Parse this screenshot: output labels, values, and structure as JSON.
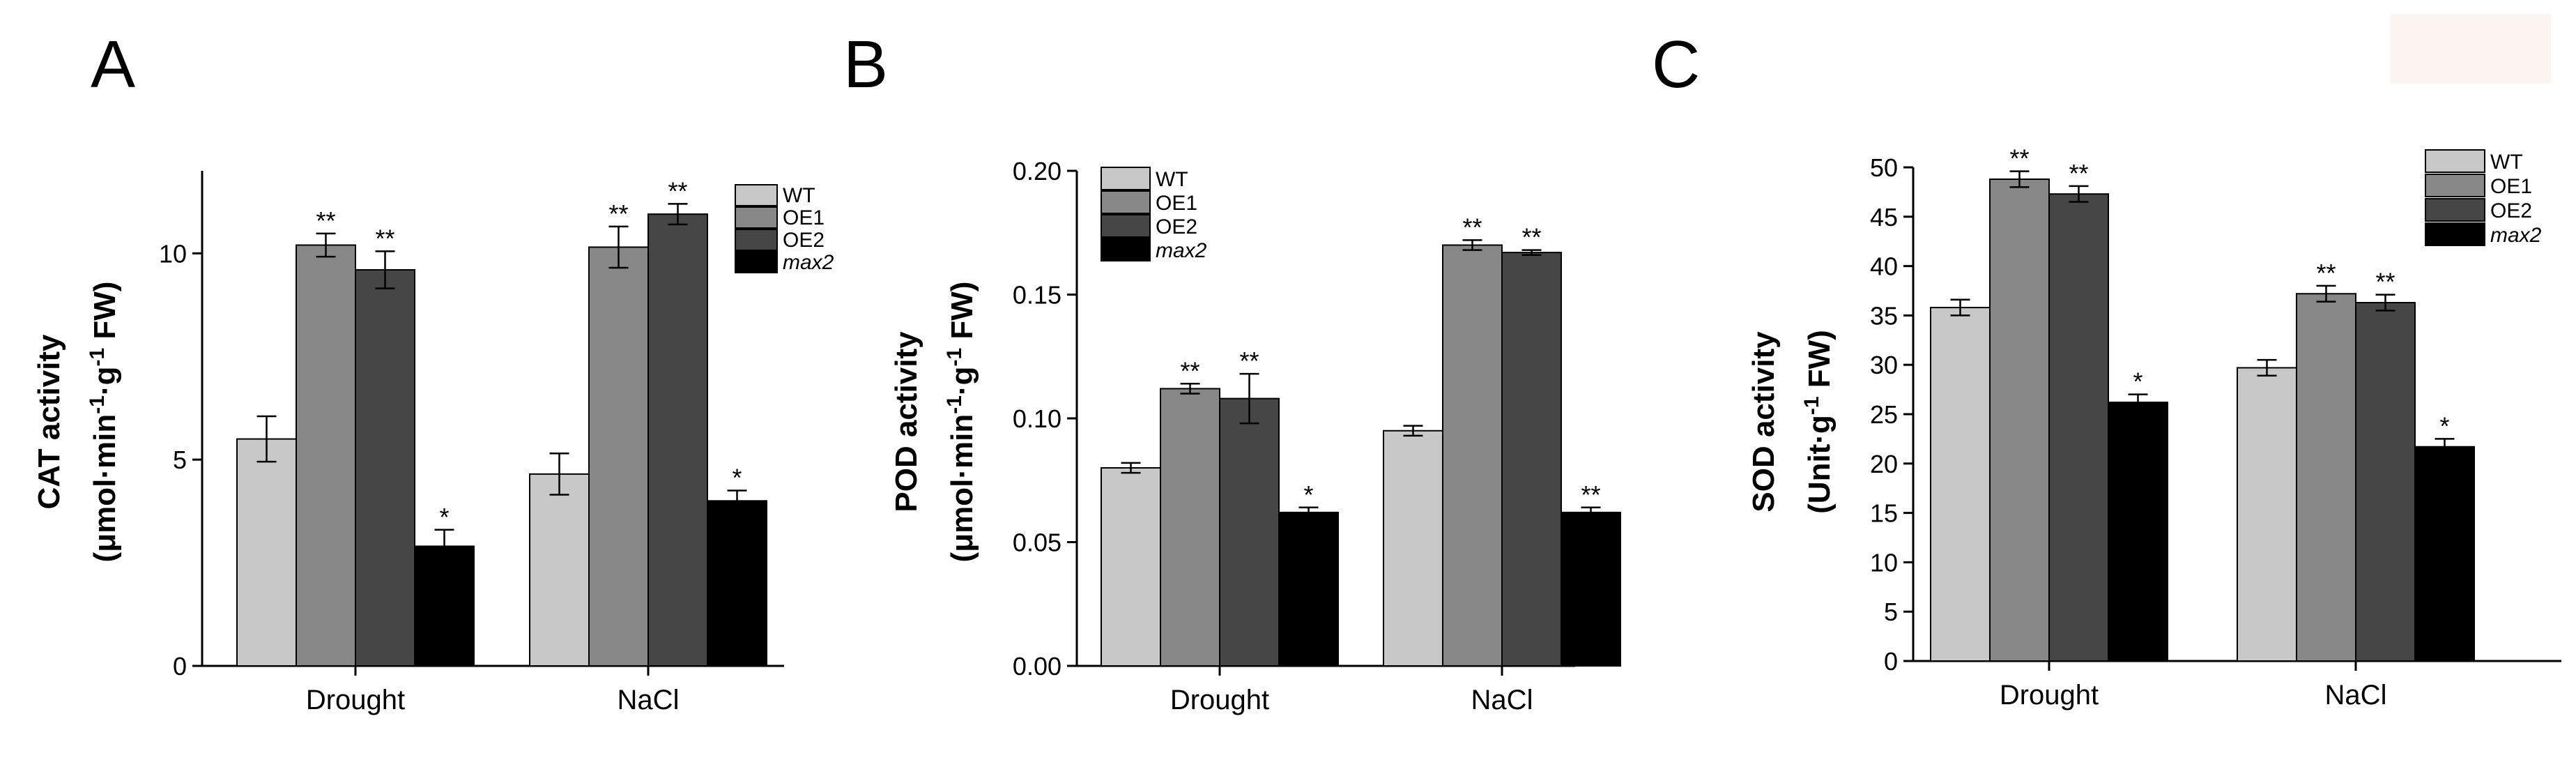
{
  "colors": {
    "WT": "#c8c8c8",
    "OE1": "#888888",
    "OE2": "#464646",
    "max2": "#000000",
    "bar_stroke": "#000000",
    "corner_mark": "#fbf4f0"
  },
  "chart_data": [
    {
      "panel": "A",
      "type": "bar",
      "ylabel_line1": "CAT activity",
      "ylabel_line2": {
        "pre": "(μmol·min",
        "sup1": "-1",
        "mid": "·g",
        "sup2": "-1",
        "post": " FW)"
      },
      "ylim": [
        0,
        12
      ],
      "yticks": [
        0,
        5,
        10
      ],
      "ytick_labels": [
        "0",
        "5",
        "10"
      ],
      "categories": [
        "Drought",
        "NaCl"
      ],
      "legend": [
        "WT",
        "OE1",
        "OE2",
        "max2"
      ],
      "series": [
        {
          "name": "WT",
          "values": [
            5.5,
            4.65
          ],
          "errors": [
            0.55,
            0.5
          ],
          "sig": [
            "",
            ""
          ]
        },
        {
          "name": "OE1",
          "values": [
            10.2,
            10.15
          ],
          "errors": [
            0.28,
            0.5
          ],
          "sig": [
            "**",
            "**"
          ]
        },
        {
          "name": "OE2",
          "values": [
            9.6,
            10.95
          ],
          "errors": [
            0.45,
            0.25
          ],
          "sig": [
            "**",
            "**"
          ]
        },
        {
          "name": "max2",
          "values": [
            2.9,
            4.0
          ],
          "errors": [
            0.4,
            0.25
          ],
          "sig": [
            "*",
            "*"
          ]
        }
      ]
    },
    {
      "panel": "B",
      "type": "bar",
      "ylabel_line1": "POD activity",
      "ylabel_line2": {
        "pre": "(μmol·min",
        "sup1": "-1",
        "mid": "·g",
        "sup2": "-1",
        "post": " FW)"
      },
      "ylim": [
        0,
        0.2
      ],
      "yticks": [
        0,
        0.05,
        0.1,
        0.15,
        0.2
      ],
      "ytick_labels": [
        "0.00",
        "0.05",
        "0.10",
        "0.15",
        "0.20"
      ],
      "categories": [
        "Drought",
        "NaCl"
      ],
      "legend": [
        "WT",
        "OE1",
        "OE2",
        "max2"
      ],
      "series": [
        {
          "name": "WT",
          "values": [
            0.08,
            0.095
          ],
          "errors": [
            0.002,
            0.002
          ],
          "sig": [
            "",
            ""
          ]
        },
        {
          "name": "OE1",
          "values": [
            0.112,
            0.17
          ],
          "errors": [
            0.002,
            0.002
          ],
          "sig": [
            "**",
            "**"
          ]
        },
        {
          "name": "OE2",
          "values": [
            0.108,
            0.167
          ],
          "errors": [
            0.01,
            0.001
          ],
          "sig": [
            "**",
            "**"
          ]
        },
        {
          "name": "max2",
          "values": [
            0.062,
            0.062
          ],
          "errors": [
            0.002,
            0.002
          ],
          "sig": [
            "*",
            "**"
          ]
        }
      ]
    },
    {
      "panel": "C",
      "type": "bar",
      "ylabel_line1": "SOD activity",
      "ylabel_line2": {
        "pre": "(Unit·g",
        "sup1": "-1",
        "mid": "",
        "sup2": "",
        "post": " FW)"
      },
      "ylim": [
        0,
        50
      ],
      "yticks": [
        0,
        5,
        10,
        15,
        20,
        25,
        30,
        35,
        40,
        45,
        50
      ],
      "ytick_labels": [
        "0",
        "5",
        "10",
        "15",
        "20",
        "25",
        "30",
        "35",
        "40",
        "45",
        "50"
      ],
      "categories": [
        "Drought",
        "NaCl"
      ],
      "legend": [
        "WT",
        "OE1",
        "OE2",
        "max2"
      ],
      "series": [
        {
          "name": "WT",
          "values": [
            35.8,
            29.7
          ],
          "errors": [
            0.8,
            0.8
          ],
          "sig": [
            "",
            ""
          ]
        },
        {
          "name": "OE1",
          "values": [
            48.8,
            37.2
          ],
          "errors": [
            0.8,
            0.8
          ],
          "sig": [
            "**",
            "**"
          ]
        },
        {
          "name": "OE2",
          "values": [
            47.3,
            36.3
          ],
          "errors": [
            0.8,
            0.8
          ],
          "sig": [
            "**",
            "**"
          ]
        },
        {
          "name": "max2",
          "values": [
            26.2,
            21.7
          ],
          "errors": [
            0.8,
            0.8
          ],
          "sig": [
            "*",
            "*"
          ]
        }
      ]
    }
  ]
}
